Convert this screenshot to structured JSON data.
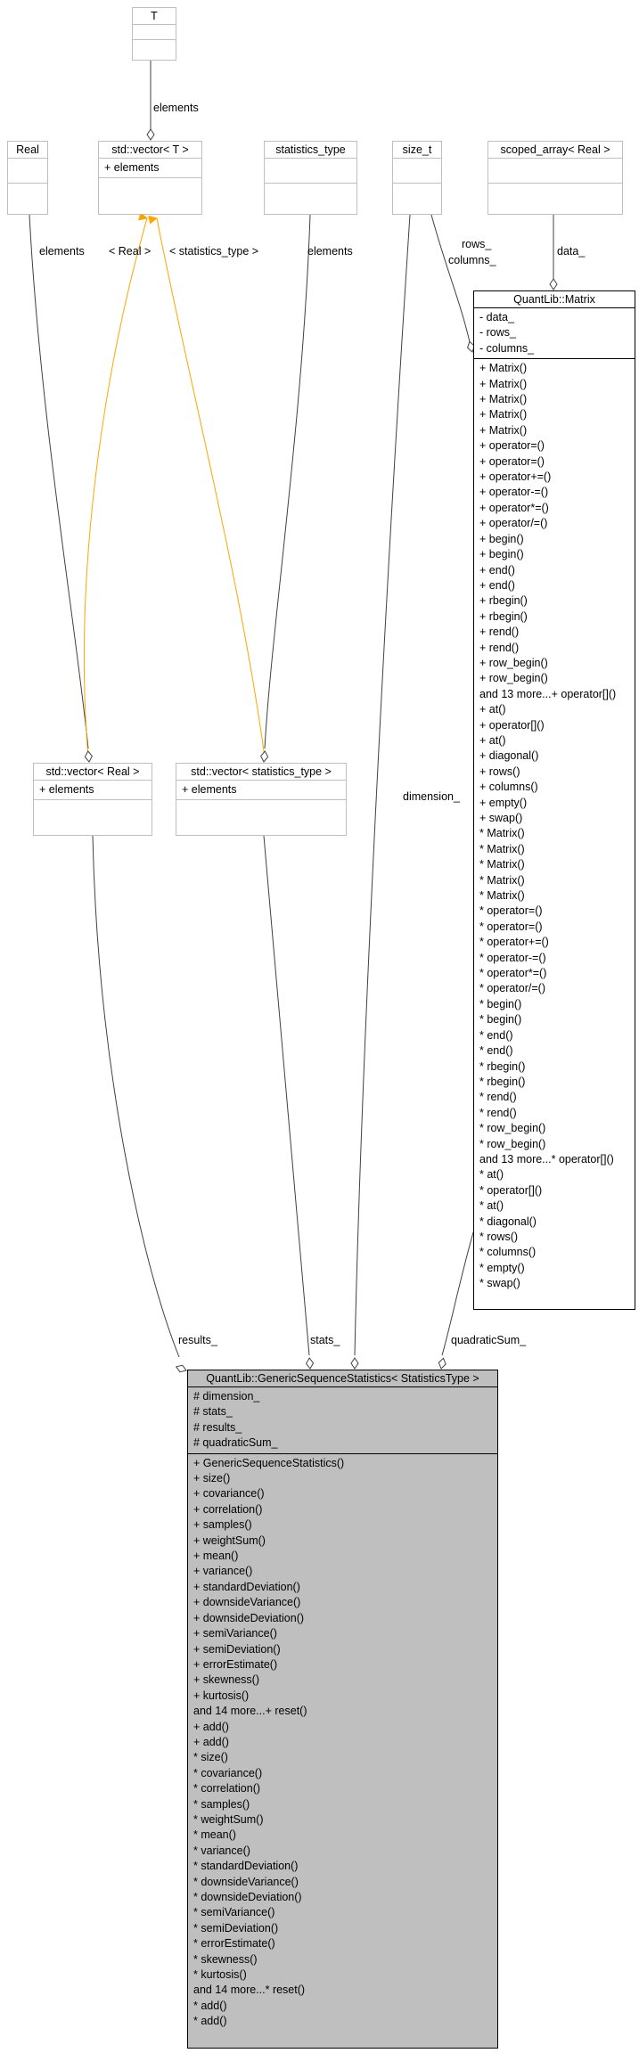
{
  "nodes": {
    "t": {
      "title": "T",
      "attributes": [],
      "methods": []
    },
    "vector_t": {
      "title": "std::vector< T >",
      "attributes": [
        "+ elements"
      ],
      "methods": []
    },
    "real": {
      "title": "Real",
      "attributes": [],
      "methods": []
    },
    "statistics_type": {
      "title": "statistics_type",
      "attributes": [],
      "methods": []
    },
    "size_t": {
      "title": "size_t",
      "attributes": [],
      "methods": []
    },
    "scoped_array": {
      "title": "scoped_array< Real >",
      "attributes": [],
      "methods": []
    },
    "matrix": {
      "title": "QuantLib::Matrix",
      "attributes": [
        "- data_",
        "- rows_",
        "- columns_"
      ],
      "methods": [
        "+ Matrix()",
        "+ Matrix()",
        "+ Matrix()",
        "+ Matrix()",
        "+ Matrix()",
        "+ operator=()",
        "+ operator=()",
        "+ operator+=()",
        "+ operator-=()",
        "+ operator*=()",
        "+ operator/=()",
        "+ begin()",
        "+ begin()",
        "+ end()",
        "+ end()",
        "+ rbegin()",
        "+ rbegin()",
        "+ rend()",
        "+ rend()",
        "+ row_begin()",
        "+ row_begin()",
        "and 13 more...+ operator[]()",
        "+ at()",
        "+ operator[]()",
        "+ at()",
        "+ diagonal()",
        "+ rows()",
        "+ columns()",
        "+ empty()",
        "+ swap()",
        "* Matrix()",
        "* Matrix()",
        "* Matrix()",
        "* Matrix()",
        "* Matrix()",
        "* operator=()",
        "* operator=()",
        "* operator+=()",
        "* operator-=()",
        "* operator*=()",
        "* operator/=()",
        "* begin()",
        "* begin()",
        "* end()",
        "* end()",
        "* rbegin()",
        "* rbegin()",
        "* rend()",
        "* rend()",
        "* row_begin()",
        "* row_begin()",
        "and 13 more...* operator[]()",
        "* at()",
        "* operator[]()",
        "* at()",
        "* diagonal()",
        "* rows()",
        "* columns()",
        "* empty()",
        "* swap()"
      ]
    },
    "vector_real": {
      "title": "std::vector< Real >",
      "attributes": [
        "+ elements"
      ],
      "methods": []
    },
    "vector_stats": {
      "title": "std::vector< statistics_type >",
      "attributes": [
        "+ elements"
      ],
      "methods": []
    },
    "generic": {
      "title": "QuantLib::GenericSequenceStatistics< StatisticsType >",
      "attributes": [
        "# dimension_",
        "# stats_",
        "# results_",
        "# quadraticSum_"
      ],
      "methods": [
        "+ GenericSequenceStatistics()",
        "+ size()",
        "+ covariance()",
        "+ correlation()",
        "+ samples()",
        "+ weightSum()",
        "+ mean()",
        "+ variance()",
        "+ standardDeviation()",
        "+ downsideVariance()",
        "+ downsideDeviation()",
        "+ semiVariance()",
        "+ semiDeviation()",
        "+ errorEstimate()",
        "+ skewness()",
        "+ kurtosis()",
        "and 14 more...+ reset()",
        "+ add()",
        "+ add()",
        "* size()",
        "* covariance()",
        "* correlation()",
        "* samples()",
        "* weightSum()",
        "* mean()",
        "* variance()",
        "* standardDeviation()",
        "* downsideVariance()",
        "* downsideDeviation()",
        "* semiVariance()",
        "* semiDeviation()",
        "* errorEstimate()",
        "* skewness()",
        "* kurtosis()",
        "and 14 more...* reset()",
        "* add()",
        "* add()"
      ]
    }
  },
  "edge_labels": {
    "t_elements": "elements",
    "real_elements": "elements",
    "stype_elements": "elements",
    "tmpl_real": "< Real >",
    "tmpl_stats": "< statistics_type >",
    "rows": "rows_",
    "columns": "columns_",
    "data": "data_",
    "dimension": "dimension_",
    "results": "results_",
    "stats": "stats_",
    "quadratic": "quadraticSum_"
  },
  "colors": {
    "template_edge": "#ffa500",
    "edge": "#404040",
    "main_fill": "#bfbfbf"
  }
}
